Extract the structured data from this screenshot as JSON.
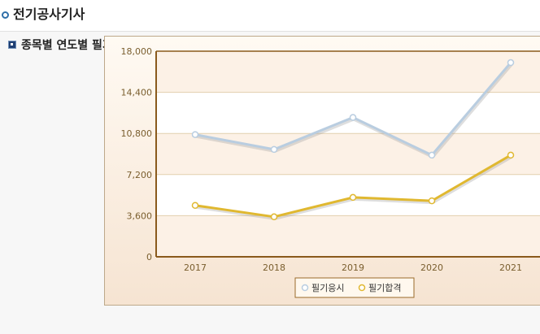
{
  "header": {
    "title": "전기공사기사"
  },
  "section": {
    "title": "종목별 연도별 필기 현황"
  },
  "chart_data": {
    "type": "line",
    "title": "",
    "xlabel": "",
    "ylabel": "",
    "categories": [
      "2017",
      "2018",
      "2019",
      "2020",
      "2021"
    ],
    "ylim": [
      0,
      18000
    ],
    "yticks": [
      0,
      3600,
      7200,
      10800,
      14400,
      18000
    ],
    "ytick_labels": [
      "0",
      "3,600",
      "7,200",
      "10,800",
      "14,400",
      "18,000"
    ],
    "grid": true,
    "legend_position": "bottom",
    "series": [
      {
        "name": "필기응시",
        "values": [
          10700,
          9400,
          12200,
          8900,
          17000
        ],
        "color": "#b9cde0"
      },
      {
        "name": "필기합격",
        "values": [
          4500,
          3500,
          5200,
          4900,
          8900
        ],
        "color": "#e0b830"
      }
    ]
  }
}
